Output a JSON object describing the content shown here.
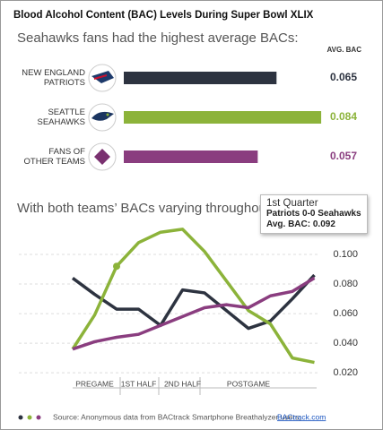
{
  "title": "Blood Alcohol Content (BAC) Levels During Super Bowl XLIX",
  "chart_data": [
    {
      "type": "bar",
      "subtitle": "Seahawks fans had the highest average BACs:",
      "value_header": "AVG. BAC",
      "categories": [
        "NEW ENGLAND PATRIOTS",
        "SEATTLE SEAHAWKS",
        "FANS OF OTHER TEAMS"
      ],
      "values": [
        0.065,
        0.084,
        0.057
      ],
      "colors": [
        "#2d3340",
        "#8cb33a",
        "#8a3d7f"
      ]
    },
    {
      "type": "line",
      "subtitle": "With both teams’ BACs varying throughout t",
      "categories": [
        null,
        "PREGAME",
        null,
        "1ST HALF",
        null,
        "2ND HALF",
        null,
        null,
        "POSTGAME",
        null,
        null,
        null
      ],
      "series": [
        {
          "color": "#2d3340",
          "values": [
            0.084,
            0.073,
            0.063,
            0.063,
            0.052,
            0.076,
            0.074,
            0.062,
            0.05,
            0.055,
            0.07,
            0.086
          ]
        },
        {
          "color": "#8cb33a",
          "values": [
            0.036,
            0.059,
            0.092,
            0.108,
            0.115,
            0.117,
            0.102,
            0.082,
            0.062,
            0.053,
            0.03,
            0.027
          ]
        },
        {
          "color": "#8a3d7f",
          "values": [
            0.036,
            0.041,
            0.044,
            0.046,
            0.052,
            0.058,
            0.064,
            0.066,
            0.064,
            0.072,
            0.075,
            0.084
          ]
        }
      ],
      "ylim": [
        0.011,
        0.123
      ],
      "yticks": [
        {
          "value": 0.02,
          "label": "0.020"
        },
        {
          "value": 0.04,
          "label": "0.040"
        },
        {
          "value": 0.06,
          "label": "0.060"
        },
        {
          "value": 0.08,
          "label": "0.080"
        },
        {
          "value": 0.1,
          "label": "0.100"
        }
      ],
      "grid": true,
      "tooltip": {
        "title": "1st Quarter",
        "line1": "Patriots 0-0 Seahawks",
        "line2": "Avg. BAC: 0.092"
      }
    }
  ],
  "source": {
    "text": "Source: Anonymous data from BACtrack Smartphone Breathalyzer users;",
    "link": "BACtrack.com"
  }
}
